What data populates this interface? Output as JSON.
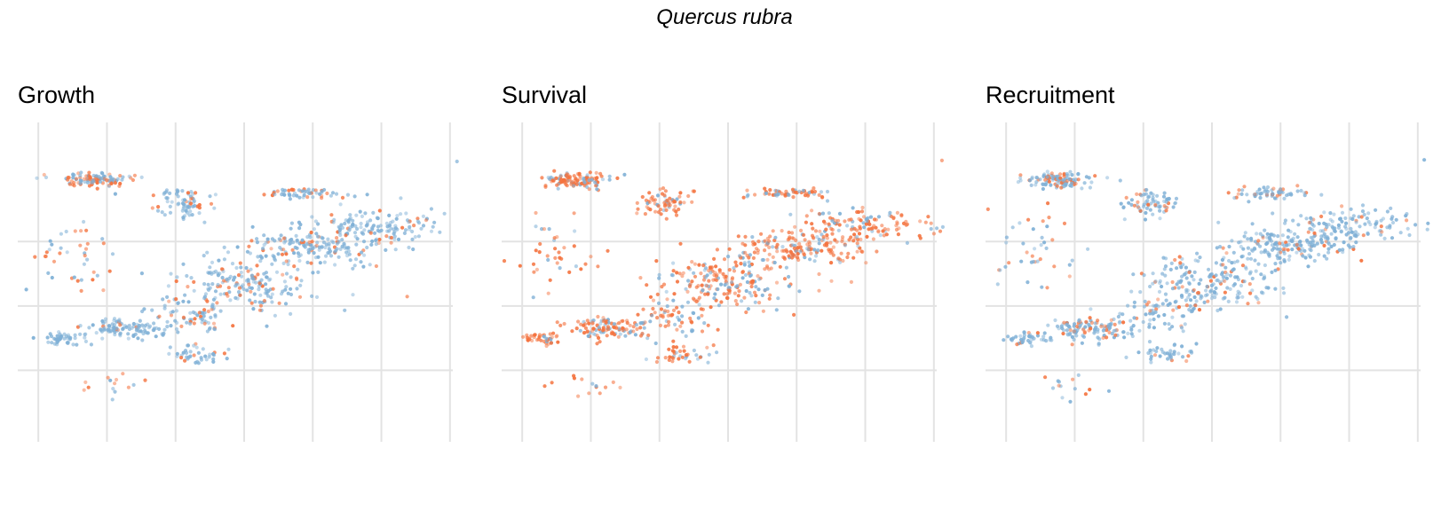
{
  "page": {
    "title": "Quercus rubra"
  },
  "colors": {
    "blue": "#7fb0d6",
    "orange": "#f4733f",
    "grid": "#e3e3e3"
  },
  "chart_data": [
    {
      "type": "scatter",
      "title": "Growth",
      "xlabel": "",
      "ylabel": "",
      "grid": true,
      "legend": "none",
      "dominant_color": "blue",
      "point_clusters": [
        {
          "x": 0.8,
          "y": 3.4,
          "sx": 0.25,
          "sy": 0.12,
          "n": 110,
          "blue": 0.6
        },
        {
          "x": 2.1,
          "y": 3.05,
          "sx": 0.2,
          "sy": 0.22,
          "n": 70,
          "blue": 0.75
        },
        {
          "x": 3.9,
          "y": 3.2,
          "sx": 0.3,
          "sy": 0.08,
          "n": 60,
          "blue": 0.7
        },
        {
          "x": 1.2,
          "y": 1.1,
          "sx": 0.3,
          "sy": 0.18,
          "n": 110,
          "blue": 0.9
        },
        {
          "x": 0.3,
          "y": 0.95,
          "sx": 0.15,
          "sy": 0.1,
          "n": 40,
          "blue": 0.9
        },
        {
          "x": 3.0,
          "y": 1.8,
          "sx": 0.5,
          "sy": 0.4,
          "n": 190,
          "blue": 0.8
        },
        {
          "x": 4.0,
          "y": 2.35,
          "sx": 0.5,
          "sy": 0.3,
          "n": 170,
          "blue": 0.85
        },
        {
          "x": 5.0,
          "y": 2.7,
          "sx": 0.5,
          "sy": 0.25,
          "n": 130,
          "blue": 0.85
        },
        {
          "x": 2.2,
          "y": 1.3,
          "sx": 0.3,
          "sy": 0.3,
          "n": 70,
          "blue": 0.7
        },
        {
          "x": 2.3,
          "y": 0.7,
          "sx": 0.25,
          "sy": 0.15,
          "n": 40,
          "blue": 0.8
        },
        {
          "x": 0.4,
          "y": 2.3,
          "sx": 0.3,
          "sy": 0.6,
          "n": 40,
          "blue": 0.5
        },
        {
          "x": 1.0,
          "y": 0.2,
          "sx": 0.3,
          "sy": 0.2,
          "n": 14,
          "blue": 0.5
        },
        {
          "x": 6.1,
          "y": 3.7,
          "sx": 0.02,
          "sy": 0.02,
          "n": 1,
          "blue": 1
        }
      ],
      "xlim": [
        -0.3,
        6.3
      ],
      "ylim": [
        -0.85,
        3.05
      ]
    },
    {
      "type": "scatter",
      "title": "Survival",
      "xlabel": "",
      "ylabel": "",
      "grid": true,
      "legend": "none",
      "dominant_color": "orange",
      "point_clusters": [
        {
          "x": 0.8,
          "y": 3.4,
          "sx": 0.25,
          "sy": 0.12,
          "n": 110,
          "blue": 0.35
        },
        {
          "x": 2.1,
          "y": 3.05,
          "sx": 0.2,
          "sy": 0.22,
          "n": 70,
          "blue": 0.3
        },
        {
          "x": 3.9,
          "y": 3.2,
          "sx": 0.3,
          "sy": 0.08,
          "n": 60,
          "blue": 0.4
        },
        {
          "x": 1.2,
          "y": 1.1,
          "sx": 0.3,
          "sy": 0.18,
          "n": 110,
          "blue": 0.3
        },
        {
          "x": 0.3,
          "y": 0.95,
          "sx": 0.15,
          "sy": 0.1,
          "n": 40,
          "blue": 0.2
        },
        {
          "x": 3.0,
          "y": 1.8,
          "sx": 0.5,
          "sy": 0.4,
          "n": 190,
          "blue": 0.35
        },
        {
          "x": 4.0,
          "y": 2.35,
          "sx": 0.5,
          "sy": 0.3,
          "n": 170,
          "blue": 0.25
        },
        {
          "x": 5.0,
          "y": 2.7,
          "sx": 0.5,
          "sy": 0.25,
          "n": 130,
          "blue": 0.2
        },
        {
          "x": 2.2,
          "y": 1.3,
          "sx": 0.3,
          "sy": 0.3,
          "n": 70,
          "blue": 0.4
        },
        {
          "x": 2.3,
          "y": 0.7,
          "sx": 0.25,
          "sy": 0.15,
          "n": 40,
          "blue": 0.35
        },
        {
          "x": 0.4,
          "y": 2.3,
          "sx": 0.3,
          "sy": 0.6,
          "n": 40,
          "blue": 0.3
        },
        {
          "x": 1.0,
          "y": 0.2,
          "sx": 0.3,
          "sy": 0.2,
          "n": 14,
          "blue": 0.2
        },
        {
          "x": 6.1,
          "y": 3.7,
          "sx": 0.02,
          "sy": 0.02,
          "n": 1,
          "blue": 0
        }
      ],
      "xlim": [
        -0.3,
        6.3
      ],
      "ylim": [
        -0.85,
        3.05
      ]
    },
    {
      "type": "scatter",
      "title": "Recruitment",
      "xlabel": "",
      "ylabel": "",
      "grid": true,
      "legend": "none",
      "dominant_color": "blue",
      "point_clusters": [
        {
          "x": 0.8,
          "y": 3.4,
          "sx": 0.25,
          "sy": 0.12,
          "n": 110,
          "blue": 0.8
        },
        {
          "x": 2.1,
          "y": 3.05,
          "sx": 0.2,
          "sy": 0.22,
          "n": 70,
          "blue": 0.75
        },
        {
          "x": 3.9,
          "y": 3.2,
          "sx": 0.3,
          "sy": 0.08,
          "n": 60,
          "blue": 0.75
        },
        {
          "x": 1.2,
          "y": 1.1,
          "sx": 0.3,
          "sy": 0.18,
          "n": 110,
          "blue": 0.75
        },
        {
          "x": 0.3,
          "y": 0.95,
          "sx": 0.15,
          "sy": 0.1,
          "n": 40,
          "blue": 0.8
        },
        {
          "x": 3.0,
          "y": 1.8,
          "sx": 0.5,
          "sy": 0.4,
          "n": 190,
          "blue": 0.85
        },
        {
          "x": 4.0,
          "y": 2.35,
          "sx": 0.5,
          "sy": 0.3,
          "n": 170,
          "blue": 0.9
        },
        {
          "x": 5.0,
          "y": 2.7,
          "sx": 0.5,
          "sy": 0.25,
          "n": 130,
          "blue": 0.85
        },
        {
          "x": 2.2,
          "y": 1.3,
          "sx": 0.3,
          "sy": 0.3,
          "n": 70,
          "blue": 0.8
        },
        {
          "x": 2.3,
          "y": 0.7,
          "sx": 0.25,
          "sy": 0.15,
          "n": 40,
          "blue": 0.9
        },
        {
          "x": 0.4,
          "y": 2.3,
          "sx": 0.3,
          "sy": 0.6,
          "n": 40,
          "blue": 0.7
        },
        {
          "x": 1.0,
          "y": 0.2,
          "sx": 0.3,
          "sy": 0.2,
          "n": 14,
          "blue": 0.7
        },
        {
          "x": 6.1,
          "y": 3.7,
          "sx": 0.02,
          "sy": 0.02,
          "n": 1,
          "blue": 1
        }
      ],
      "xlim": [
        -0.3,
        6.3
      ],
      "ylim": [
        -0.85,
        3.05
      ]
    }
  ]
}
